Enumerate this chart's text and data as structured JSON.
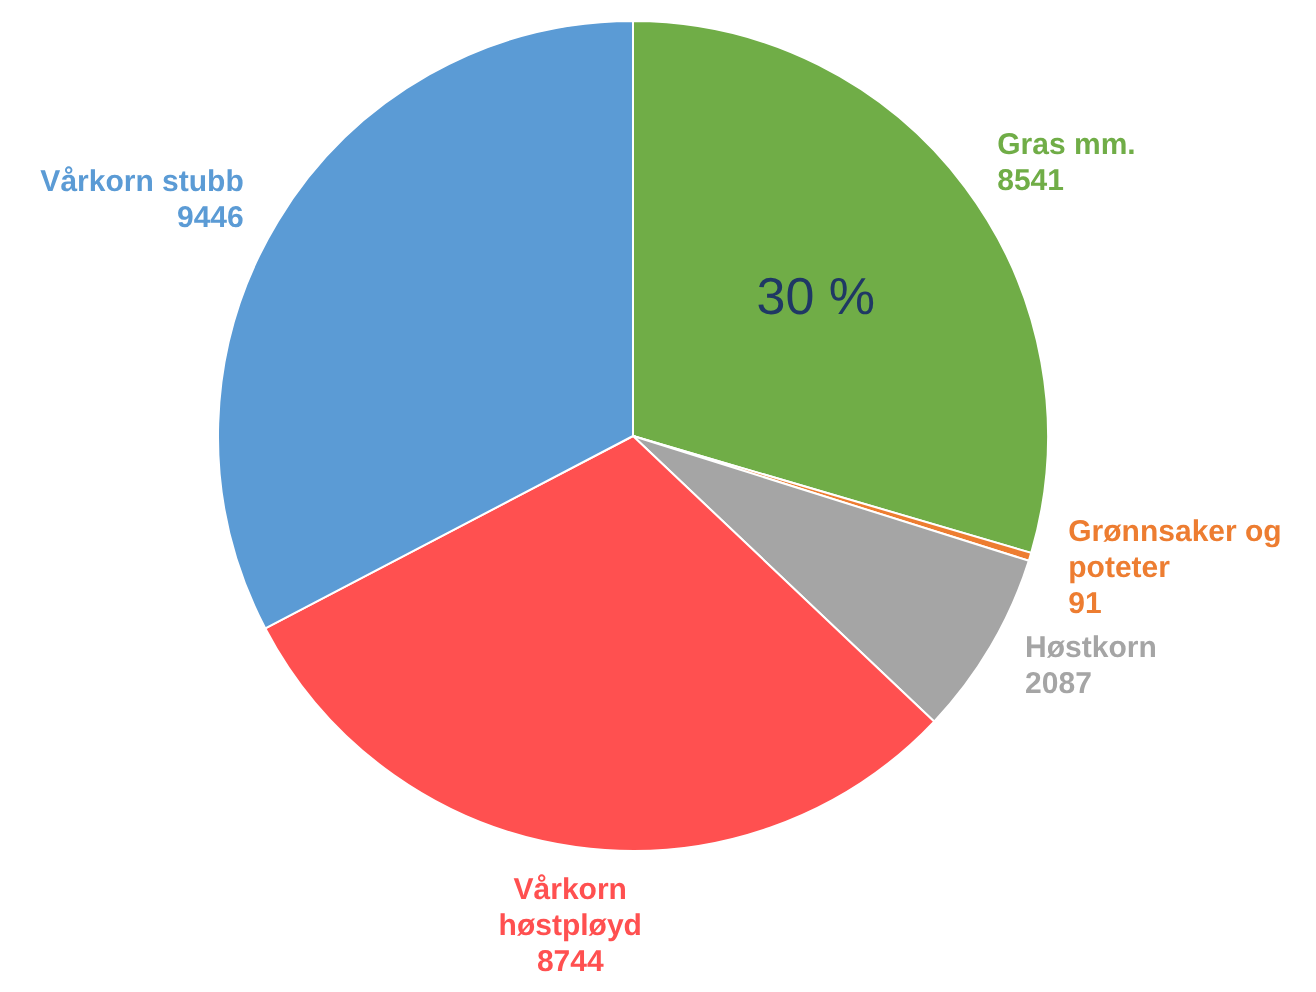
{
  "chart_data": {
    "type": "pie",
    "categories": [
      "Gras mm.",
      "Grønnsaker og poteter",
      "Høstkorn",
      "Vårkorn høstpløyd",
      "Vårkorn stubb"
    ],
    "values": [
      8541,
      91,
      2087,
      8744,
      9446
    ],
    "colors": [
      "#70ad47",
      "#ed7d31",
      "#a5a5a5",
      "#ff5050",
      "#5b9bd5"
    ],
    "data_labels": true,
    "annotations": [
      "30 %"
    ],
    "legend": false
  }
}
